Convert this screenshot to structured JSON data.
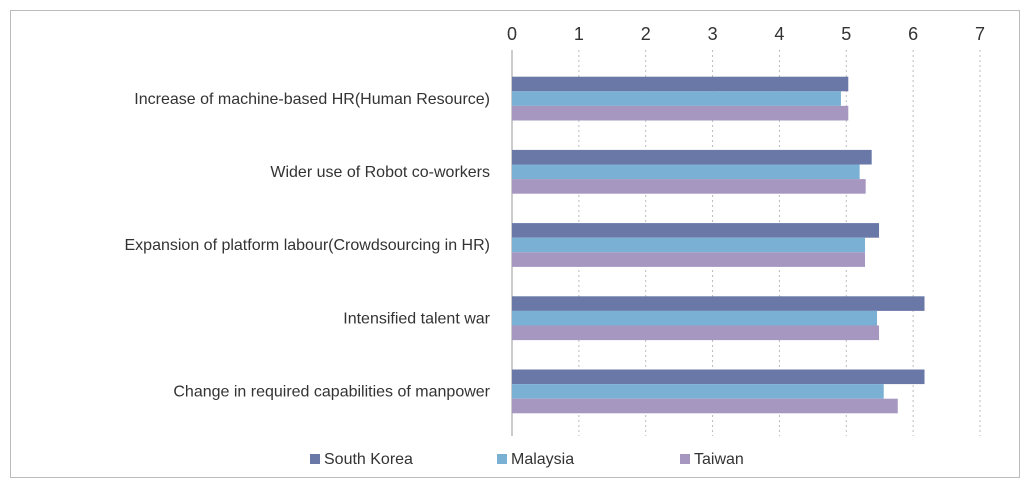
{
  "chart_data": {
    "type": "hbar",
    "categories": [
      "Increase of machine-based HR(Human Resource)",
      "Wider use of Robot co-workers",
      "Expansion of platform labour(Crowdsourcing in HR)",
      "Intensified talent war",
      "Change in required capabilities of manpower"
    ],
    "series": [
      {
        "name": "South Korea",
        "color": "#6a78a8",
        "values": [
          5.03,
          5.38,
          5.49,
          6.17,
          6.17
        ]
      },
      {
        "name": "Malaysia",
        "color": "#7ab0d4",
        "values": [
          4.92,
          5.2,
          5.28,
          5.46,
          5.56
        ]
      },
      {
        "name": "Taiwan",
        "color": "#a697c1",
        "values": [
          5.03,
          5.29,
          5.28,
          5.49,
          5.77
        ]
      }
    ],
    "xlim": [
      0,
      7
    ],
    "xticks": [
      0,
      1,
      2,
      3,
      4,
      5,
      6,
      7
    ],
    "grid": true,
    "legend": "bottom"
  }
}
